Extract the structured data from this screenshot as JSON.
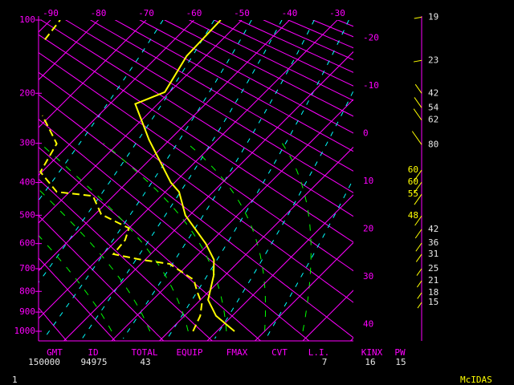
{
  "chart_data": {
    "type": "skewt",
    "ylim": [
      1000,
      100
    ],
    "yticks": [
      100,
      200,
      300,
      400,
      500,
      600,
      700,
      800,
      900,
      1000
    ],
    "xticks": [
      -90,
      -80,
      -70,
      -60,
      -50,
      -40,
      -30
    ],
    "xticks_right": [
      -20,
      -10,
      0,
      10,
      20,
      30,
      40
    ],
    "temperature": {
      "color": "#ffff00",
      "pressure": [
        1000,
        919,
        840,
        730,
        663,
        600,
        500,
        427,
        400,
        292,
        219,
        198,
        143,
        100
      ],
      "values": [
        13.7,
        6.6,
        1.6,
        -2.3,
        -5.6,
        -10.7,
        -20.9,
        -27.1,
        -30.8,
        -44.3,
        -54.7,
        -51.0,
        -54.0,
        -54.4
      ]
    },
    "dewpoint": {
      "color": "#ffff00",
      "pressure": [
        1000,
        919,
        859,
        803,
        748,
        680,
        663,
        641,
        587,
        544,
        497,
        439,
        427,
        371,
        301,
        266,
        241,
        null,
        122,
        100
      ],
      "values": [
        5.0,
        3.3,
        1.1,
        -2.3,
        -5.6,
        -14.0,
        -20.8,
        -27.8,
        -28.3,
        -30.0,
        -38.7,
        -44.3,
        -52.7,
        -60.3,
        -62.8,
        -67.8,
        -71.7,
        null,
        -87.1,
        -88.0
      ]
    },
    "wind": {
      "color": "#ffff00",
      "pressure": [
        97,
        149,
        200,
        226,
        250,
        303,
        366,
        399,
        434,
        502,
        548,
        598,
        641,
        700,
        752,
        806,
        852
      ],
      "speed": [
        19,
        23,
        42,
        54,
        62,
        80,
        60,
        60,
        55,
        48,
        42,
        36,
        31,
        25,
        21,
        18,
        15
      ]
    },
    "stats": [
      {
        "label": "GMT",
        "value": "150000"
      },
      {
        "label": "ID",
        "value": "94975"
      },
      {
        "label": "TOTAL",
        "value": 43
      },
      {
        "label": "EQUIP"
      },
      {
        "label": "FMAX"
      },
      {
        "label": "CVT"
      },
      {
        "label": "L.I.",
        "value": 7
      },
      {
        "label": "KINX",
        "value": 16
      },
      {
        "label": "PW",
        "value": 15
      }
    ],
    "page_number": "1",
    "footer": "McIDAS"
  }
}
